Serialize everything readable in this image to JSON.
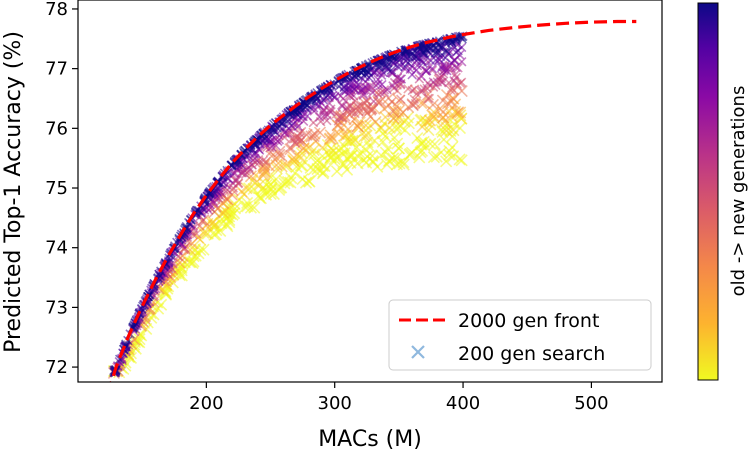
{
  "chart_data": {
    "type": "scatter",
    "xlabel": "MACs (M)",
    "ylabel": "Predicted Top-1 Accuracy (%)",
    "xlim": [
      100,
      555
    ],
    "ylim": [
      71.75,
      78.15
    ],
    "xticks": [
      200,
      300,
      400,
      500
    ],
    "yticks": [
      72,
      73,
      74,
      75,
      76,
      77,
      78
    ],
    "grid": false,
    "legend_position": "lower-right",
    "colorbar_label": "old -> new generations",
    "colormap": "plasma",
    "colors": {
      "front": "#ff0000",
      "search_marker": "#8fb8de",
      "axis": "#000000"
    },
    "series": [
      {
        "name": "2000 gen front",
        "style": "dashed-line",
        "x": [
          123,
          130,
          140,
          150,
          160,
          170,
          180,
          190,
          200,
          210,
          220,
          230,
          240,
          250,
          260,
          270,
          280,
          290,
          300,
          310,
          320,
          330,
          340,
          350,
          360,
          370,
          380,
          390,
          400,
          420,
          440,
          460,
          480,
          500,
          520,
          535
        ],
        "y": [
          71.55,
          72.02,
          72.55,
          73.02,
          73.45,
          73.85,
          74.22,
          74.57,
          74.88,
          75.16,
          75.42,
          75.65,
          75.86,
          76.05,
          76.22,
          76.38,
          76.53,
          76.67,
          76.8,
          76.92,
          77.03,
          77.13,
          77.22,
          77.3,
          77.37,
          77.43,
          77.48,
          77.53,
          77.57,
          77.64,
          77.69,
          77.73,
          77.76,
          77.78,
          77.79,
          77.79
        ]
      },
      {
        "name": "200 gen search",
        "style": "x-markers",
        "x_range": [
          127,
          400
        ],
        "y_range": [
          71.9,
          77.3
        ]
      }
    ]
  }
}
